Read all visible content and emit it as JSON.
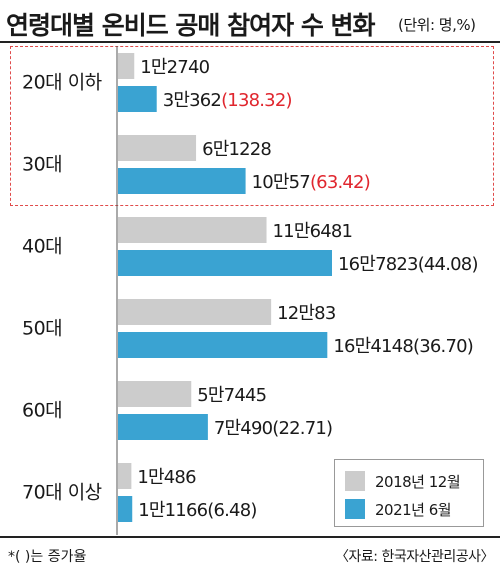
{
  "chart_data": {
    "type": "bar",
    "orientation": "horizontal",
    "title": "연령대별 온비드 공매 참여자 수 변화",
    "unit_note": "(단위: 명,%)",
    "categories": [
      "20대 이하",
      "30대",
      "40대",
      "50대",
      "60대",
      "70대 이상"
    ],
    "series": [
      {
        "name": "2018년 12월",
        "color": "#cccccc",
        "values": [
          12740,
          61228,
          116481,
          120083,
          57445,
          10486
        ],
        "labels": [
          "1만2740",
          "6만1228",
          "11만6481",
          "12만83",
          "5만7445",
          "1만486"
        ]
      },
      {
        "name": "2021년 6월",
        "color": "#3aa3d2",
        "values": [
          30362,
          100057,
          167823,
          164148,
          70490,
          11166
        ],
        "labels": [
          "3만362",
          "10만57",
          "16만7823",
          "16만4148",
          "7만490",
          "1만1166"
        ],
        "growth": [
          "(138.32)",
          "(63.42)",
          "(44.08)",
          "(36.70)",
          "(22.71)",
          "(6.48)"
        ],
        "growth_highlight": [
          true,
          true,
          false,
          false,
          false,
          false
        ]
      }
    ],
    "highlight_color": "#e0262e",
    "highlighted_categories": [
      "20대 이하",
      "30대"
    ],
    "legend_position": "bottom-right",
    "grid": false,
    "footnote": "*(  )는 증가율",
    "source": "〈자료: 한국자산관리공사〉"
  }
}
